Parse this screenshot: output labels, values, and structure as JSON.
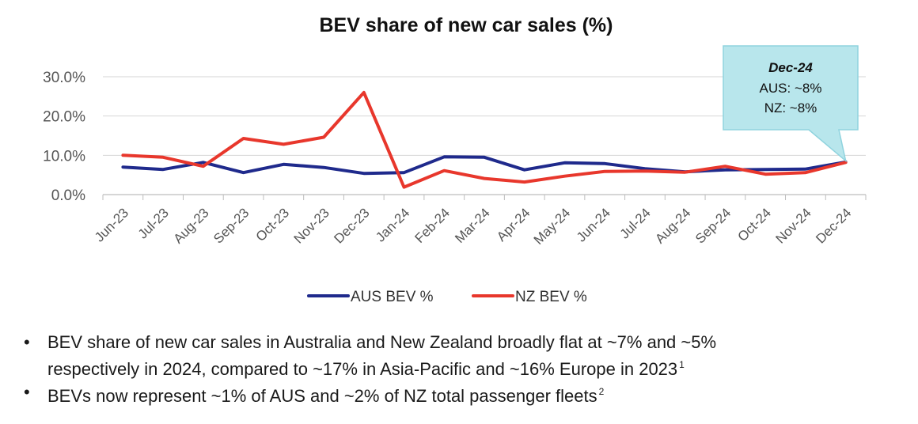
{
  "chart_data": {
    "type": "line",
    "title": "BEV share of new car sales (%)",
    "categories": [
      "Jun-23",
      "Jul-23",
      "Aug-23",
      "Sep-23",
      "Oct-23",
      "Nov-23",
      "Dec-23",
      "Jan-24",
      "Feb-24",
      "Mar-24",
      "Apr-24",
      "May-24",
      "Jun-24",
      "Jul-24",
      "Aug-24",
      "Sep-24",
      "Oct-24",
      "Nov-24",
      "Dec-24"
    ],
    "series": [
      {
        "name": "AUS BEV %",
        "color": "#1f2a8c",
        "values": [
          7.0,
          6.4,
          8.2,
          5.6,
          7.7,
          6.9,
          5.4,
          5.6,
          9.6,
          9.5,
          6.3,
          8.1,
          7.9,
          6.6,
          5.8,
          6.3,
          6.4,
          6.5,
          8.3
        ]
      },
      {
        "name": "NZ BEV %",
        "color": "#e8372c",
        "values": [
          10.0,
          9.5,
          7.2,
          14.3,
          12.8,
          14.6,
          26.0,
          1.9,
          6.1,
          4.1,
          3.2,
          4.7,
          5.9,
          6.0,
          5.7,
          7.2,
          5.2,
          5.6,
          8.2
        ]
      }
    ],
    "ylim": [
      0,
      30
    ],
    "yticks": [
      "0.0%",
      "10.0%",
      "20.0%",
      "30.0%"
    ],
    "ytick_values": [
      0,
      10,
      20,
      30
    ],
    "grid": true,
    "legend_position": "bottom",
    "callout": {
      "title": "Dec-24",
      "line1": "AUS: ~8%",
      "line2": "NZ: ~8%",
      "points_to": "Dec-24",
      "fill": "#b8e6ec",
      "border": "#8fd3de"
    }
  },
  "notes": {
    "bullet": "•",
    "items": [
      {
        "text_a": "BEV share of new car sales in Australia and New Zealand broadly flat at ~7% and ~5%",
        "text_b": "respectively in 2024, compared to ~17% in Asia-Pacific and ~16% Europe in 2023",
        "footnote": "1"
      },
      {
        "text": "BEVs now represent ~1% of AUS and ~2% of NZ total passenger fleets",
        "footnote": "2"
      }
    ]
  }
}
